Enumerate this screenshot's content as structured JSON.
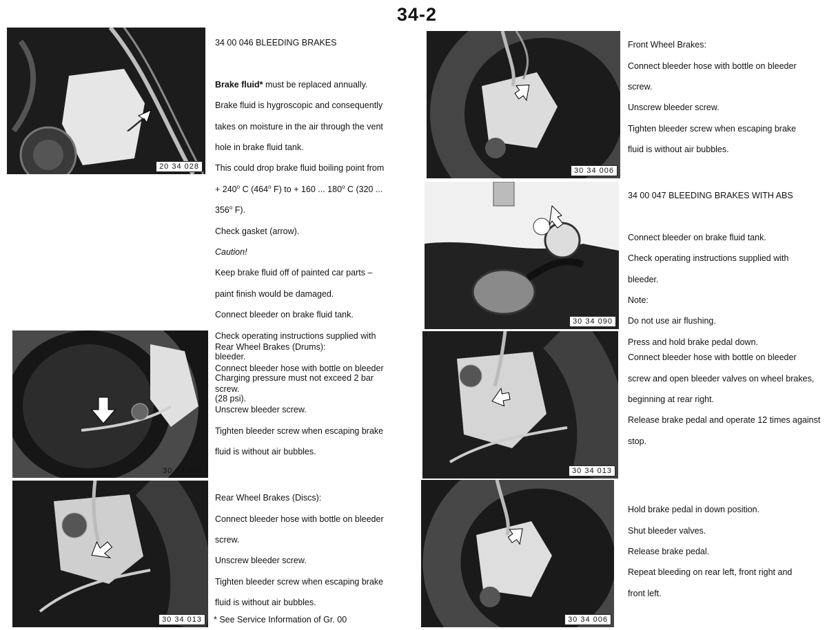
{
  "page_number": "34-2",
  "sections": {
    "bleeding_brakes": {
      "heading": "34 00 046  BLEEDING BRAKES",
      "figure": "20 34 028",
      "lead_bold": "Brake fluid*",
      "lead_rest": " must be replaced annually.",
      "lines": [
        "Brake fluid is hygroscopic and consequently",
        "takes on moisture in the air through the vent",
        "hole in brake fluid tank.",
        "This could drop brake fluid boiling point from"
      ],
      "temp_line_1_a": "+ 240",
      "temp_line_1_b": " C (464",
      "temp_line_1_c": " F) to + 160 ... 180",
      "temp_line_1_d": " C (320 ...",
      "temp_line_2_a": "356",
      "temp_line_2_b": " F).",
      "degree": "o",
      "check_gasket": "Check gasket (arrow).",
      "caution": "Caution!",
      "lines_after": [
        "Keep brake fluid off of painted car parts –",
        "paint finish would be damaged.",
        "Connect bleeder on brake fluid tank.",
        "Check operating instructions supplied with",
        "bleeder.",
        "Charging pressure must not exceed 2 bar",
        "(28 psi)."
      ]
    },
    "rear_drums": {
      "figure": "30 34 005",
      "lines": [
        "Rear Wheel Brakes (Drums):",
        "Connect bleeder hose with bottle on bleeder",
        "screw.",
        "Unscrew bleeder screw.",
        "Tighten bleeder screw when escaping brake",
        "fluid is without air bubbles."
      ]
    },
    "rear_discs": {
      "figure": "30 34 013",
      "lines": [
        "Rear Wheel Brakes (Discs):",
        "Connect bleeder hose with bottle on bleeder",
        "screw.",
        "Unscrew bleeder screw.",
        "Tighten bleeder screw when escaping brake",
        "fluid is without air bubbles."
      ],
      "footnote": "* See Service Information of Gr. 00"
    },
    "front_wheel": {
      "figure": "30 34 006",
      "lines": [
        "Front Wheel Brakes:",
        "Connect bleeder hose with bottle on bleeder",
        "screw.",
        "Unscrew bleeder screw.",
        "Tighten bleeder screw when escaping brake",
        "fluid is without air bubbles."
      ]
    },
    "abs": {
      "figure": "30 34 090",
      "heading": "34 00 047 BLEEDING BRAKES WITH ABS",
      "lines": [
        "Connect bleeder on brake fluid tank.",
        "Check operating instructions supplied with",
        "bleeder.",
        "Note:",
        "Do not use air flushing.",
        "Press and hold brake pedal down."
      ]
    },
    "abs_step2": {
      "figure": "30 34 013",
      "lines": [
        "Connect bleeder hose with bottle on bleeder",
        "screw and open bleeder valves on wheel brakes,",
        "beginning at rear right.",
        "Release brake pedal and operate 12 times against",
        "stop."
      ]
    },
    "abs_step3": {
      "figure": "30 34 006",
      "lines": [
        "Hold brake pedal in down position.",
        "Shut bleeder valves.",
        "Release brake pedal.",
        "Repeat bleeding on rear left, front right and",
        "front left."
      ]
    }
  }
}
